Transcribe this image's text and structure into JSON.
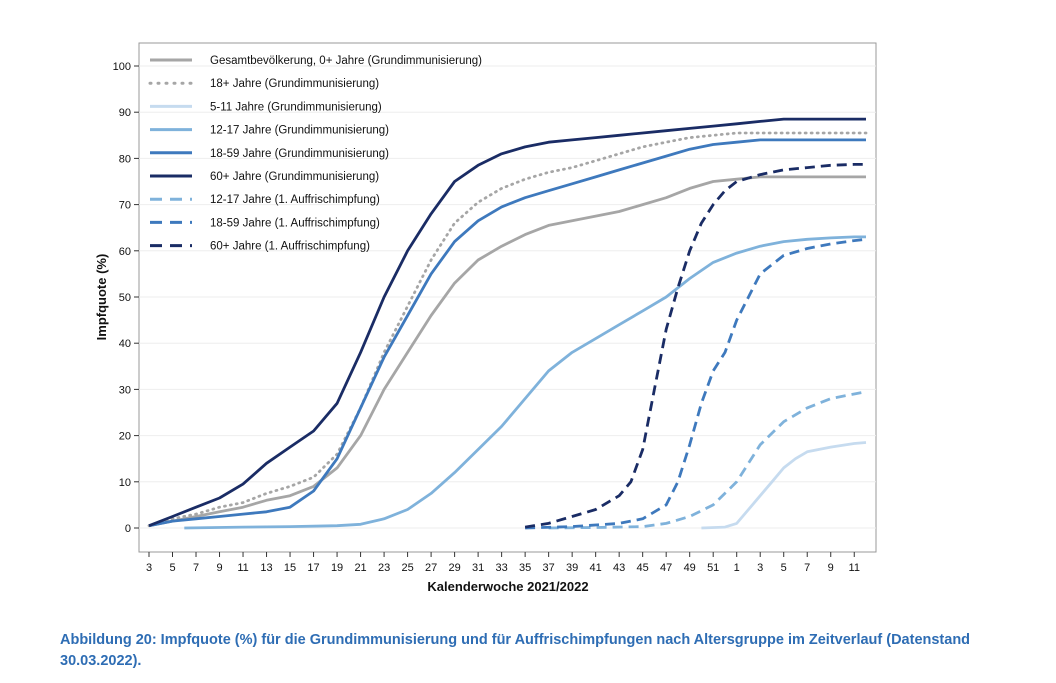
{
  "chart_data": {
    "type": "line",
    "xlabel": "Kalenderwoche 2021/2022",
    "ylabel": "Impfquote (%)",
    "ylim": [
      0,
      100
    ],
    "yticks": [
      0,
      10,
      20,
      30,
      40,
      50,
      60,
      70,
      80,
      90,
      100
    ],
    "xticks": [
      "3",
      "5",
      "7",
      "9",
      "11",
      "13",
      "15",
      "17",
      "19",
      "21",
      "23",
      "25",
      "27",
      "29",
      "31",
      "33",
      "35",
      "37",
      "39",
      "41",
      "43",
      "45",
      "47",
      "49",
      "51",
      "1",
      "3",
      "5",
      "7",
      "9",
      "11"
    ],
    "x_index_range": [
      0,
      61
    ],
    "legend_position": "top-left",
    "series": [
      {
        "name": "Gesamtbevölkerung, 0+ Jahre (Grundimmunisierung)",
        "color": "#a6a6a6",
        "style": "solid",
        "points": [
          [
            0,
            0.5
          ],
          [
            2,
            1.5
          ],
          [
            4,
            2.5
          ],
          [
            6,
            3.5
          ],
          [
            8,
            4.5
          ],
          [
            10,
            6
          ],
          [
            12,
            7
          ],
          [
            14,
            9
          ],
          [
            16,
            13
          ],
          [
            18,
            20
          ],
          [
            20,
            30
          ],
          [
            22,
            38
          ],
          [
            24,
            46
          ],
          [
            26,
            53
          ],
          [
            28,
            58
          ],
          [
            30,
            61
          ],
          [
            32,
            63.5
          ],
          [
            34,
            65.5
          ],
          [
            36,
            66.5
          ],
          [
            38,
            67.5
          ],
          [
            40,
            68.5
          ],
          [
            42,
            70
          ],
          [
            44,
            71.5
          ],
          [
            46,
            73.5
          ],
          [
            48,
            75
          ],
          [
            50,
            75.5
          ],
          [
            52,
            76
          ],
          [
            54,
            76
          ],
          [
            56,
            76
          ],
          [
            58,
            76
          ],
          [
            60,
            76
          ],
          [
            61,
            76
          ]
        ]
      },
      {
        "name": "18+ Jahre (Grundimmunisierung)",
        "color": "#a6a6a6",
        "style": "dotted",
        "points": [
          [
            0,
            0.5
          ],
          [
            2,
            2
          ],
          [
            4,
            3
          ],
          [
            6,
            4.5
          ],
          [
            8,
            5.5
          ],
          [
            10,
            7.5
          ],
          [
            12,
            9
          ],
          [
            14,
            11
          ],
          [
            16,
            16
          ],
          [
            18,
            26
          ],
          [
            20,
            38
          ],
          [
            22,
            48
          ],
          [
            24,
            58
          ],
          [
            26,
            66
          ],
          [
            28,
            70.5
          ],
          [
            30,
            73.5
          ],
          [
            32,
            75.5
          ],
          [
            34,
            77
          ],
          [
            36,
            78
          ],
          [
            38,
            79.5
          ],
          [
            40,
            81
          ],
          [
            42,
            82.5
          ],
          [
            44,
            83.5
          ],
          [
            46,
            84.5
          ],
          [
            48,
            85
          ],
          [
            50,
            85.5
          ],
          [
            52,
            85.5
          ],
          [
            54,
            85.5
          ],
          [
            56,
            85.5
          ],
          [
            58,
            85.5
          ],
          [
            60,
            85.5
          ],
          [
            61,
            85.5
          ]
        ]
      },
      {
        "name": "5-11 Jahre (Grundimmunisierung)",
        "color": "#c6dbef",
        "style": "solid",
        "points": [
          [
            47,
            0
          ],
          [
            49,
            0.2
          ],
          [
            50,
            1
          ],
          [
            51,
            4
          ],
          [
            52,
            7
          ],
          [
            53,
            10
          ],
          [
            54,
            13
          ],
          [
            55,
            15
          ],
          [
            56,
            16.5
          ],
          [
            58,
            17.5
          ],
          [
            60,
            18.3
          ],
          [
            61,
            18.5
          ]
        ]
      },
      {
        "name": "12-17 Jahre (Grundimmunisierung)",
        "color": "#7fb2db",
        "style": "solid",
        "points": [
          [
            3,
            0
          ],
          [
            8,
            0.2
          ],
          [
            12,
            0.3
          ],
          [
            16,
            0.5
          ],
          [
            18,
            0.8
          ],
          [
            20,
            2
          ],
          [
            22,
            4
          ],
          [
            24,
            7.5
          ],
          [
            26,
            12
          ],
          [
            28,
            17
          ],
          [
            30,
            22
          ],
          [
            32,
            28
          ],
          [
            34,
            34
          ],
          [
            36,
            38
          ],
          [
            38,
            41
          ],
          [
            40,
            44
          ],
          [
            42,
            47
          ],
          [
            44,
            50
          ],
          [
            46,
            54
          ],
          [
            48,
            57.5
          ],
          [
            50,
            59.5
          ],
          [
            52,
            61
          ],
          [
            54,
            62
          ],
          [
            56,
            62.5
          ],
          [
            58,
            62.8
          ],
          [
            60,
            63
          ],
          [
            61,
            63
          ]
        ]
      },
      {
        "name": "18-59 Jahre (Grundimmunisierung)",
        "color": "#3e79bd",
        "style": "solid",
        "points": [
          [
            0,
            0.5
          ],
          [
            2,
            1.5
          ],
          [
            4,
            2
          ],
          [
            6,
            2.5
          ],
          [
            8,
            3
          ],
          [
            10,
            3.5
          ],
          [
            12,
            4.5
          ],
          [
            14,
            8
          ],
          [
            16,
            15
          ],
          [
            18,
            26
          ],
          [
            20,
            37
          ],
          [
            22,
            46
          ],
          [
            24,
            55
          ],
          [
            26,
            62
          ],
          [
            28,
            66.5
          ],
          [
            30,
            69.5
          ],
          [
            32,
            71.5
          ],
          [
            34,
            73
          ],
          [
            36,
            74.5
          ],
          [
            38,
            76
          ],
          [
            40,
            77.5
          ],
          [
            42,
            79
          ],
          [
            44,
            80.5
          ],
          [
            46,
            82
          ],
          [
            48,
            83
          ],
          [
            50,
            83.5
          ],
          [
            52,
            84
          ],
          [
            54,
            84
          ],
          [
            56,
            84
          ],
          [
            58,
            84
          ],
          [
            60,
            84
          ],
          [
            61,
            84
          ]
        ]
      },
      {
        "name": "60+ Jahre (Grundimmunisierung)",
        "color": "#1a2c65",
        "style": "solid",
        "points": [
          [
            0,
            0.5
          ],
          [
            2,
            2.5
          ],
          [
            4,
            4.5
          ],
          [
            6,
            6.5
          ],
          [
            8,
            9.5
          ],
          [
            10,
            14
          ],
          [
            12,
            17.5
          ],
          [
            14,
            21
          ],
          [
            16,
            27
          ],
          [
            18,
            38
          ],
          [
            20,
            50
          ],
          [
            22,
            60
          ],
          [
            24,
            68
          ],
          [
            26,
            75
          ],
          [
            28,
            78.5
          ],
          [
            30,
            81
          ],
          [
            32,
            82.5
          ],
          [
            34,
            83.5
          ],
          [
            36,
            84
          ],
          [
            38,
            84.5
          ],
          [
            40,
            85
          ],
          [
            42,
            85.5
          ],
          [
            44,
            86
          ],
          [
            46,
            86.5
          ],
          [
            48,
            87
          ],
          [
            50,
            87.5
          ],
          [
            52,
            88
          ],
          [
            54,
            88.5
          ],
          [
            56,
            88.5
          ],
          [
            58,
            88.5
          ],
          [
            60,
            88.5
          ],
          [
            61,
            88.5
          ]
        ]
      },
      {
        "name": "12-17 Jahre (1. Auffrischimpfung)",
        "color": "#7fb2db",
        "style": "dashed",
        "points": [
          [
            34,
            0
          ],
          [
            38,
            0.1
          ],
          [
            42,
            0.3
          ],
          [
            44,
            1
          ],
          [
            46,
            2.5
          ],
          [
            48,
            5
          ],
          [
            50,
            10
          ],
          [
            52,
            18
          ],
          [
            54,
            23
          ],
          [
            56,
            26
          ],
          [
            58,
            28
          ],
          [
            60,
            29
          ],
          [
            61,
            29.5
          ]
        ]
      },
      {
        "name": "18-59 Jahre (1. Auffrischimpfung)",
        "color": "#3e79bd",
        "style": "dashed",
        "points": [
          [
            32,
            0
          ],
          [
            36,
            0.3
          ],
          [
            40,
            1
          ],
          [
            42,
            2
          ],
          [
            44,
            5
          ],
          [
            45,
            10
          ],
          [
            46,
            18
          ],
          [
            47,
            27
          ],
          [
            48,
            34
          ],
          [
            49,
            38
          ],
          [
            50,
            45
          ],
          [
            51,
            50
          ],
          [
            52,
            55
          ],
          [
            54,
            59
          ],
          [
            56,
            60.5
          ],
          [
            58,
            61.5
          ],
          [
            60,
            62.2
          ],
          [
            61,
            62.5
          ]
        ]
      },
      {
        "name": "60+ Jahre (1. Auffrischimpfung)",
        "color": "#1a2c65",
        "style": "dashed",
        "points": [
          [
            32,
            0.2
          ],
          [
            34,
            1
          ],
          [
            36,
            2.5
          ],
          [
            38,
            4
          ],
          [
            40,
            7
          ],
          [
            41,
            10
          ],
          [
            42,
            17
          ],
          [
            43,
            30
          ],
          [
            44,
            43
          ],
          [
            45,
            52
          ],
          [
            46,
            60
          ],
          [
            47,
            66
          ],
          [
            48,
            70
          ],
          [
            49,
            73
          ],
          [
            50,
            75
          ],
          [
            52,
            76.5
          ],
          [
            54,
            77.5
          ],
          [
            56,
            78
          ],
          [
            58,
            78.5
          ],
          [
            60,
            78.7
          ],
          [
            61,
            78.7
          ]
        ]
      }
    ]
  },
  "caption": "Abbildung 20: Impfquote (%) für die Grundimmunisierung und für Auffrischimpfungen nach Altersgruppe im Zeitverlauf (Datenstand 30.03.2022)."
}
